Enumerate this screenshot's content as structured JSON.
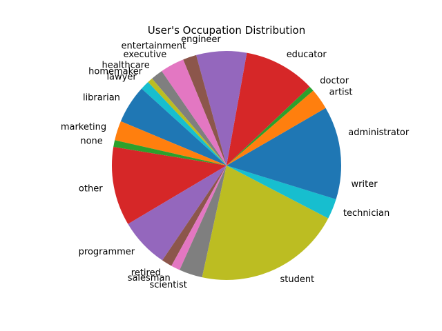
{
  "chart_data": {
    "type": "pie",
    "title": "User's Occupation Distribution",
    "start_angle_deg": 0,
    "direction": "counterclockwise",
    "slices": [
      {
        "label": "administrator",
        "value": 79,
        "color": "#1f77b4"
      },
      {
        "label": "artist",
        "value": 28,
        "color": "#ff7f0e"
      },
      {
        "label": "doctor",
        "value": 7,
        "color": "#2ca02c"
      },
      {
        "label": "educator",
        "value": 95,
        "color": "#d62728"
      },
      {
        "label": "engineer",
        "value": 67,
        "color": "#9467bd"
      },
      {
        "label": "entertainment",
        "value": 18,
        "color": "#8c564b"
      },
      {
        "label": "executive",
        "value": 32,
        "color": "#e377c2"
      },
      {
        "label": "healthcare",
        "value": 16,
        "color": "#7f7f7f"
      },
      {
        "label": "homemaker",
        "value": 7,
        "color": "#bcbd22"
      },
      {
        "label": "lawyer",
        "value": 12,
        "color": "#17becf"
      },
      {
        "label": "librarian",
        "value": 51,
        "color": "#1f77b4"
      },
      {
        "label": "marketing",
        "value": 26,
        "color": "#ff7f0e"
      },
      {
        "label": "none",
        "value": 9,
        "color": "#2ca02c"
      },
      {
        "label": "other",
        "value": 105,
        "color": "#d62728"
      },
      {
        "label": "programmer",
        "value": 66,
        "color": "#9467bd"
      },
      {
        "label": "retired",
        "value": 14,
        "color": "#8c564b"
      },
      {
        "label": "salesman",
        "value": 12,
        "color": "#e377c2"
      },
      {
        "label": "scientist",
        "value": 31,
        "color": "#7f7f7f"
      },
      {
        "label": "student",
        "value": 196,
        "color": "#bcbd22"
      },
      {
        "label": "technician",
        "value": 27,
        "color": "#17becf"
      },
      {
        "label": "writer",
        "value": 45,
        "color": "#1f77b4"
      }
    ]
  }
}
